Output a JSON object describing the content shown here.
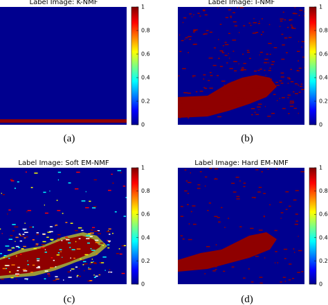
{
  "panels": [
    {
      "title": "Label Image: K-NMF",
      "caption": "(a)",
      "colorbar": {
        "lim": [
          0,
          1
        ],
        "ticks": [
          0,
          0.2,
          0.4,
          0.6,
          0.8,
          1
        ]
      }
    },
    {
      "title": "Label Image: I-NMF",
      "caption": "(b)",
      "colorbar": {
        "lim": [
          0,
          1
        ],
        "ticks": [
          0,
          0.2,
          0.4,
          0.6,
          0.8,
          1
        ]
      }
    },
    {
      "title": "Label Image: Soft EM-NMF",
      "caption": "(c)",
      "colorbar": {
        "lim": [
          0,
          1
        ],
        "ticks": [
          0,
          0.2,
          0.4,
          0.6,
          0.8,
          1
        ]
      }
    },
    {
      "title": "Label Image: Hard EM-NMF",
      "caption": "(d)",
      "colorbar": {
        "lim": [
          0,
          1
        ],
        "ticks": [
          0,
          0.2,
          0.4,
          0.6,
          0.8,
          1
        ]
      }
    }
  ]
}
